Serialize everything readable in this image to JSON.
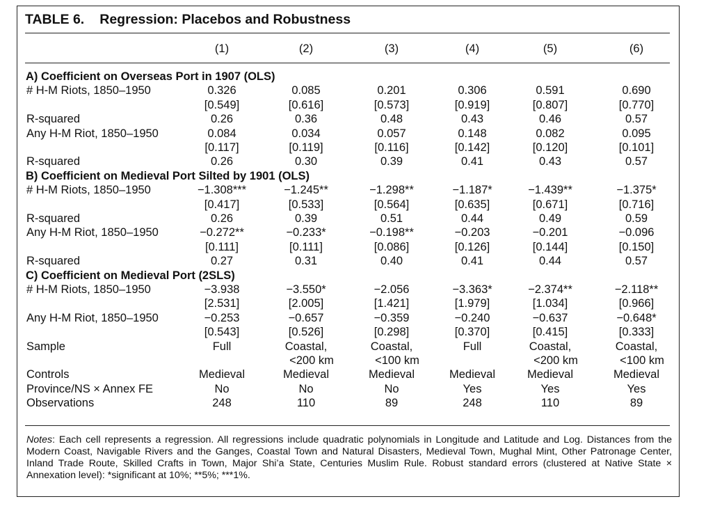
{
  "table": {
    "number": "TABLE 6.",
    "title": "Regression: Placebos and Robustness",
    "columns": [
      "(1)",
      "(2)",
      "(3)",
      "(4)",
      "(5)",
      "(6)"
    ],
    "panels": [
      {
        "heading": "A) Coefficient on Overseas Port in 1907 (OLS)",
        "rows": [
          {
            "label": "# H-M Riots, 1850–1950",
            "cells": [
              "0.326",
              "0.085",
              "0.201",
              "0.306",
              "0.591",
              "0.690"
            ]
          },
          {
            "label": "",
            "cells": [
              "[0.549]",
              "[0.616]",
              "[0.573]",
              "[0.919]",
              "[0.807]",
              "[0.770]"
            ]
          },
          {
            "label": "R-squared",
            "cells": [
              "0.26",
              "0.36",
              "0.48",
              "0.43",
              "0.46",
              "0.57"
            ]
          },
          {
            "label": "Any H-M Riot, 1850–1950",
            "cells": [
              "0.084",
              "0.034",
              "0.057",
              "0.148",
              "0.082",
              "0.095"
            ]
          },
          {
            "label": "",
            "cells": [
              "[0.117]",
              "[0.119]",
              "[0.116]",
              "[0.142]",
              "[0.120]",
              "[0.101]"
            ]
          },
          {
            "label": "R-squared",
            "cells": [
              "0.26",
              "0.30",
              "0.39",
              "0.41",
              "0.43",
              "0.57"
            ]
          }
        ]
      },
      {
        "heading": "B) Coefficient on Medieval Port Silted by 1901 (OLS)",
        "rows": [
          {
            "label": "# H-M Riots, 1850–1950",
            "cells": [
              "−1.308***",
              "−1.245**",
              "−1.298**",
              "−1.187*",
              "−1.439**",
              "−1.375*"
            ]
          },
          {
            "label": "",
            "cells": [
              "[0.417]",
              "[0.533]",
              "[0.564]",
              "[0.635]",
              "[0.671]",
              "[0.716]"
            ]
          },
          {
            "label": "R-squared",
            "cells": [
              "0.26",
              "0.39",
              "0.51",
              "0.44",
              "0.49",
              "0.59"
            ]
          },
          {
            "label": "Any H-M Riot, 1850–1950",
            "cells": [
              "−0.272**",
              "−0.233*",
              "−0.198**",
              "−0.203",
              "−0.201",
              "−0.096"
            ]
          },
          {
            "label": "",
            "cells": [
              "[0.111]",
              "[0.111]",
              "[0.086]",
              "[0.126]",
              "[0.144]",
              "[0.150]"
            ]
          },
          {
            "label": "R-squared",
            "cells": [
              "0.27",
              "0.31",
              "0.40",
              "0.41",
              "0.44",
              "0.57"
            ]
          }
        ]
      },
      {
        "heading": "C) Coefficient on Medieval Port (2SLS)",
        "rows": [
          {
            "label": "# H-M Riots, 1850–1950",
            "cells": [
              "−3.938",
              "−3.550*",
              "−2.056",
              "−3.363*",
              "−2.374**",
              "−2.118**"
            ]
          },
          {
            "label": "",
            "cells": [
              "[2.531]",
              "[2.005]",
              "[1.421]",
              "[1.979]",
              "[1.034]",
              "[0.966]"
            ]
          },
          {
            "label": "Any H-M Riot, 1850–1950",
            "cells": [
              "−0.253",
              "−0.657",
              "−0.359",
              "−0.240",
              "−0.637",
              "−0.648*"
            ]
          },
          {
            "label": "",
            "cells": [
              "[0.543]",
              "[0.526]",
              "[0.298]",
              "[0.370]",
              "[0.415]",
              "[0.333]"
            ]
          }
        ]
      }
    ],
    "footer_rows": [
      {
        "label": "Sample",
        "cells": [
          "Full",
          "Coastal,",
          "Coastal,",
          "Full",
          "Coastal,",
          "Coastal,"
        ]
      },
      {
        "label": "",
        "cells": [
          "",
          "<200 km",
          "<100 km",
          "",
          "<200 km",
          "<100 km"
        ]
      },
      {
        "label": "Controls",
        "cells": [
          "Medieval",
          "Medieval",
          "Medieval",
          "Medieval",
          "Medieval",
          "Medieval"
        ]
      },
      {
        "label": "Province/NS × Annex FE",
        "cells": [
          "No",
          "No",
          "No",
          "Yes",
          "Yes",
          "Yes"
        ]
      },
      {
        "label": "Observations",
        "cells": [
          "248",
          "110",
          "89",
          "248",
          "110",
          "89"
        ]
      }
    ],
    "notes_label": "Notes",
    "notes_text": ": Each cell represents a regression. All regressions include quadratic polynomials in Longitude and Latitude and Log. Distances from the Modern Coast, Navigable Rivers and the Ganges, Coastal Town and Natural Disasters, Medieval Town, Mughal Mint, Other Patronage Center, Inland Trade Route, Skilled Crafts in Town, Major Shi’a State, Centuries Muslim Rule. Robust standard errors (clustered at Native State × Annexation level): *significant at 10%; **5%; ***1%."
  }
}
